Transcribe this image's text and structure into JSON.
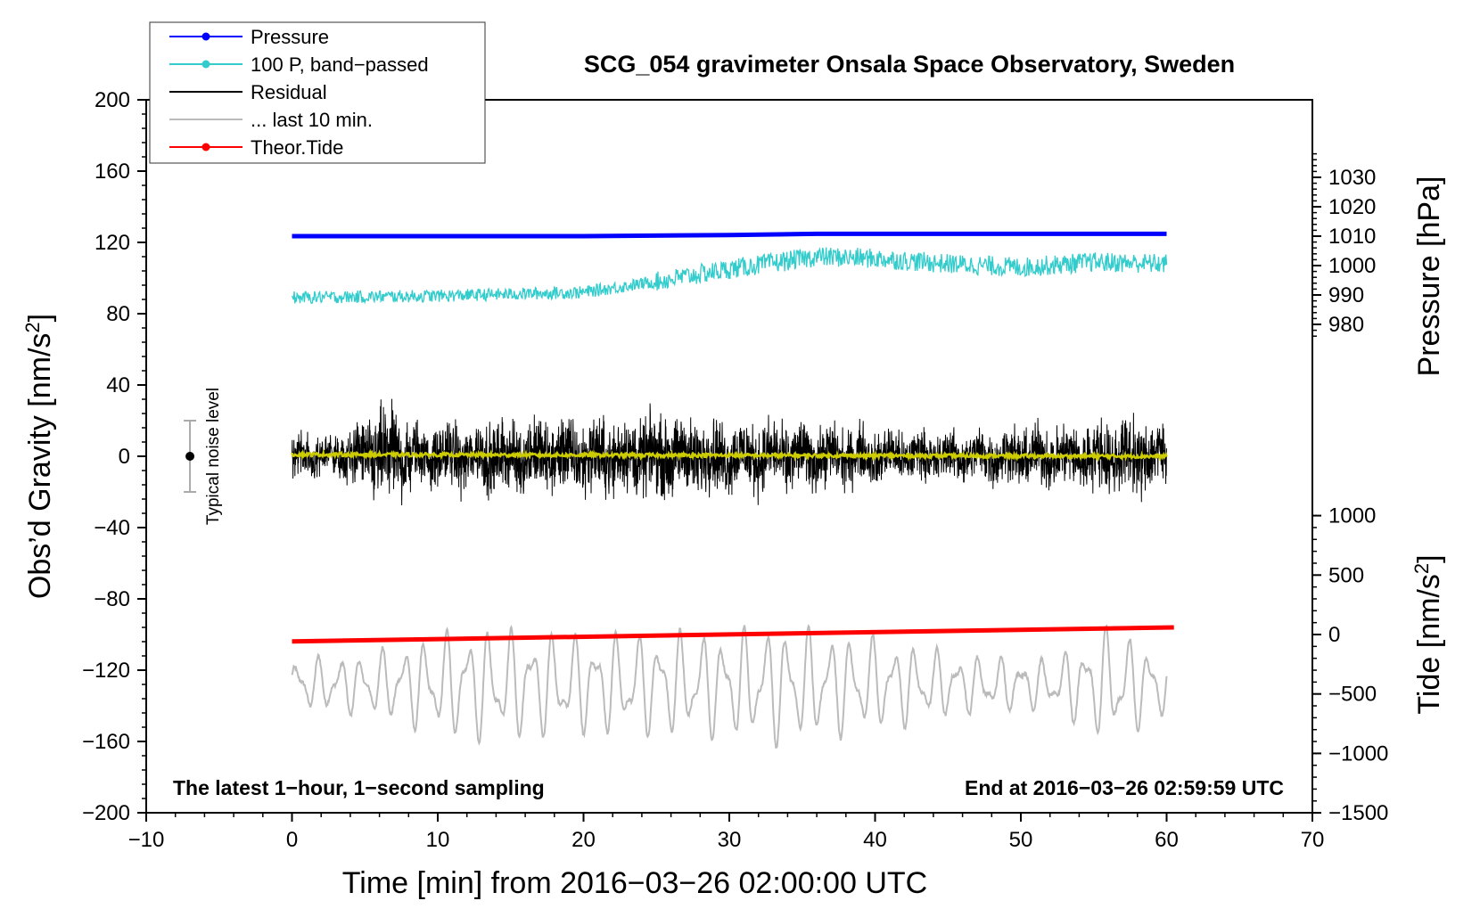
{
  "chart_data": {
    "type": "line",
    "title": "SCG_054 gravimeter Onsala Space Observatory, Sweden",
    "xlabel": "Time [min] from 2016−03−26 02:00:00 UTC",
    "ylabel_left": "Obs’d Gravity [nm/s",
    "ylabel_left_sup": "2",
    "ylabel_left_end": "]",
    "ylabel_right_top": "Pressure [hPa]",
    "ylabel_right_bottom": "Tide [nm/s",
    "ylabel_right_bottom_sup": "2",
    "ylabel_right_bottom_end": "]",
    "xlim": [
      -10,
      70
    ],
    "ylim_left": [
      -200,
      200
    ],
    "x_ticks": [
      "−10",
      "0",
      "10",
      "20",
      "30",
      "40",
      "50",
      "60",
      "70"
    ],
    "x_tick_values": [
      -10,
      0,
      10,
      20,
      30,
      40,
      50,
      60,
      70
    ],
    "y_ticks_left": [
      "200",
      "160",
      "120",
      "80",
      "40",
      "0",
      "−40",
      "−80",
      "−120",
      "−160",
      "−200"
    ],
    "y_tick_values_left": [
      200,
      160,
      120,
      80,
      40,
      0,
      -40,
      -80,
      -120,
      -160,
      -200
    ],
    "pressure_axis": {
      "ticks": [
        "1030",
        "1020",
        "1010",
        "1000",
        "990",
        "980"
      ],
      "tick_values": [
        1030,
        1020,
        1010,
        1000,
        990,
        980
      ],
      "map": {
        "hpa_ref": 1010,
        "gravity_ref": 123.5,
        "gravity_per_hpa": 1.65
      }
    },
    "tide_axis": {
      "ticks": [
        "1000",
        "500",
        "0",
        "−500",
        "−1000",
        "−1500"
      ],
      "tick_values": [
        1000,
        500,
        0,
        -500,
        -1000,
        -1500
      ],
      "map": {
        "tide_ref": 0,
        "gravity_ref": -100,
        "gravity_per_unit": 0.0667
      }
    },
    "legend": {
      "position": "top-left",
      "entries": [
        {
          "label": "Pressure",
          "color": "#0000ff",
          "marker": true
        },
        {
          "label": "100 P, band−passed",
          "color": "#33cccc",
          "marker": true
        },
        {
          "label": "Residual",
          "color": "#000000",
          "marker": false
        },
        {
          "label": "... last 10 min.",
          "color": "#bbbbbb",
          "marker": false
        },
        {
          "label": "Theor.Tide",
          "color": "#ff0000",
          "marker": true
        }
      ]
    },
    "series": [
      {
        "name": "Pressure",
        "color": "#0000ff",
        "unit": "hPa",
        "x": [
          0,
          10,
          20,
          30,
          36,
          40,
          50,
          60
        ],
        "y": [
          1010.0,
          1010.0,
          1010.0,
          1010.4,
          1010.8,
          1010.8,
          1010.8,
          1010.8
        ]
      },
      {
        "name": "100 P, band-passed",
        "color": "#33cccc",
        "unit": "nm/s2",
        "x": [
          0,
          10,
          20,
          25,
          30,
          36,
          40,
          45,
          50,
          55,
          60
        ],
        "y": [
          89,
          90,
          92,
          98,
          105,
          112,
          111,
          108,
          106,
          109,
          108
        ],
        "noise_amplitude": 3.5
      },
      {
        "name": "Residual",
        "color": "#000000",
        "unit": "nm/s2",
        "x": [
          0,
          60
        ],
        "y": [
          0,
          0
        ],
        "envelope": {
          "x": [
            0,
            3,
            6.5,
            9,
            14,
            21,
            27,
            33,
            36,
            45,
            52,
            57,
            60
          ],
          "amp": [
            18,
            15,
            40,
            22,
            28,
            30,
            30,
            26,
            24,
            18,
            24,
            28,
            28
          ]
        }
      },
      {
        "name": "Residual mean",
        "color": "#cccc00",
        "unit": "nm/s2",
        "x": [
          0,
          60
        ],
        "y": [
          1,
          0
        ]
      },
      {
        "name": "... last 10 min.",
        "color": "#bbbbbb",
        "unit": "nm/s2",
        "x": [
          0,
          60
        ],
        "y": [
          -128,
          -128
        ],
        "envelope": {
          "x": [
            0,
            5,
            8,
            12,
            20,
            30,
            33,
            40,
            46,
            52,
            56,
            60
          ],
          "amp": [
            15,
            18,
            25,
            35,
            30,
            32,
            36,
            28,
            18,
            15,
            35,
            20
          ]
        }
      },
      {
        "name": "Theor.Tide",
        "color": "#ff0000",
        "unit": "nm/s2",
        "x": [
          0,
          60.5
        ],
        "y": [
          -58,
          60
        ]
      }
    ],
    "annotations": {
      "left": "The latest 1−hour, 1−second sampling",
      "right": "End at 2016−03−26 02:59:59 UTC",
      "noise_label": "Typical noise level",
      "noise_bar": {
        "x": -7,
        "center": 0,
        "half_range": 20
      }
    }
  }
}
